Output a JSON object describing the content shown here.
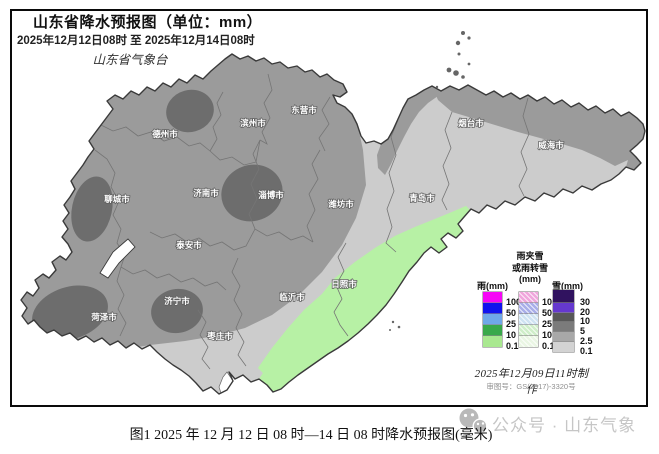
{
  "header": {
    "title": "山东省降水预报图（单位：mm）",
    "date_range": "2025年12月12日08时  至  2025年12月14日08时",
    "agency": "山东省气象台"
  },
  "legend": {
    "rain": {
      "label": "雨(mm)",
      "colors": [
        "#f606f6",
        "#1113ee",
        "#6fa8e9",
        "#39a94b",
        "#a9e890"
      ],
      "thresholds": [
        "100",
        "50",
        "25",
        "10",
        "0.1"
      ]
    },
    "sleet": {
      "label_lines": [
        "雨夹雪",
        "或雨转雪",
        "(mm)"
      ],
      "colors": [
        "#f0a6dc",
        "#a9aee9",
        "#cfe3f2",
        "#cfeec9",
        "#eaf6e4"
      ],
      "thresholds": [
        "100",
        "50",
        "25",
        "10",
        "0.1"
      ]
    },
    "snow": {
      "label": "雪(mm)",
      "colors": [
        "#30125f",
        "#6538cf",
        "#585858",
        "#7b7b7b",
        "#a8a8a8",
        "#d3d3d3"
      ],
      "thresholds": [
        "30",
        "20",
        "10",
        "5",
        "2.5",
        "0.1"
      ]
    },
    "made_at": "2025年12月09日11时制作",
    "approval": "审图号：GS(2017)-3320号"
  },
  "map": {
    "cities": [
      "德州市",
      "滨州市",
      "东营市",
      "烟台市",
      "威海市",
      "聊城市",
      "济南市",
      "淄博市",
      "潍坊市",
      "青岛市",
      "泰安市",
      "济宁市",
      "菏泽市",
      "枣庄市",
      "临沂市",
      "日照市"
    ],
    "colors": {
      "snow_base": "#9b9b9b",
      "snow_light": "#cccccc",
      "snow_heavy": "#6d6d6d",
      "sleet_band": "#b7f1a5",
      "outline": "#3a3a3a",
      "inner_border": "#757575",
      "sea": "#ffffff"
    }
  },
  "caption": "图1 2025 年 12 月 12 日 08 时—14 日 08 时降水预报图(毫米)",
  "watermark": {
    "text": "公众号 · 山东气象"
  }
}
